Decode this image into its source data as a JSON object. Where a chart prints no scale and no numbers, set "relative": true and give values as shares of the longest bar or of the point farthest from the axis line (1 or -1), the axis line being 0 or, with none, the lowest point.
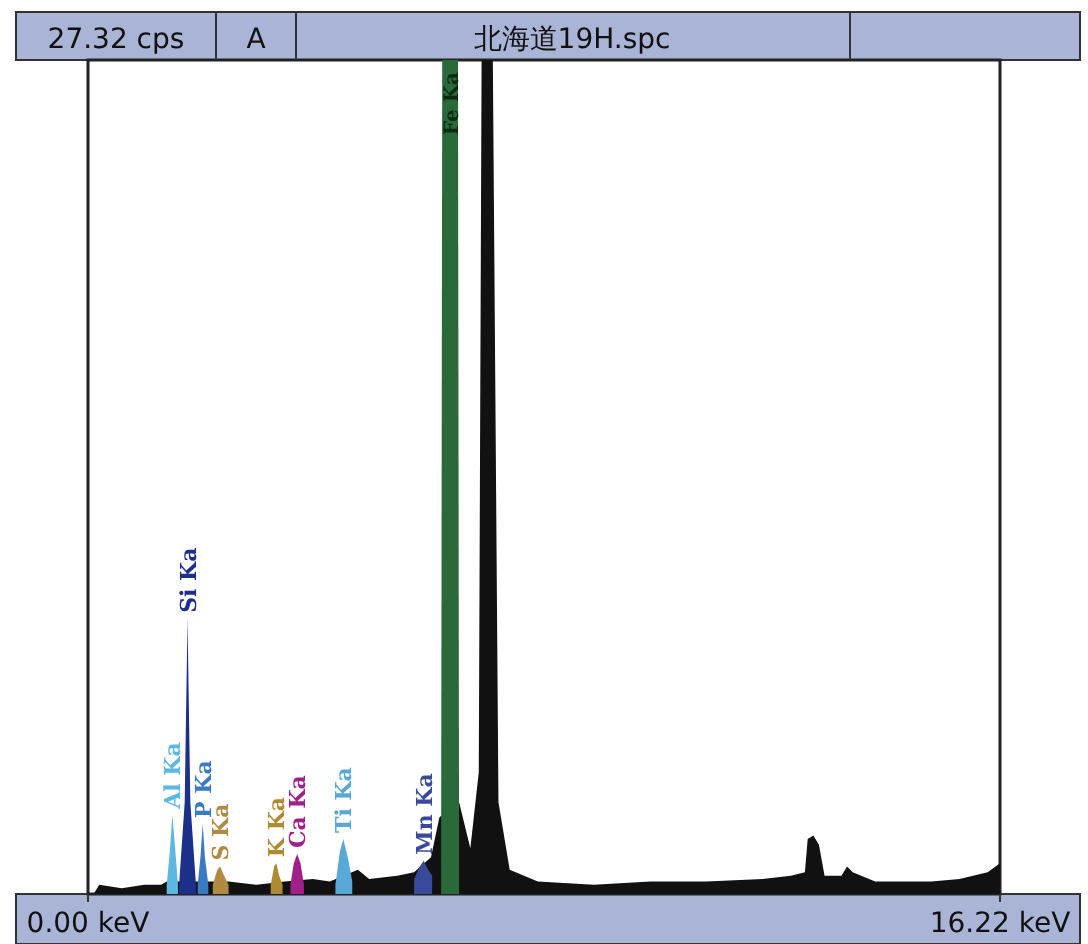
{
  "chart_data": {
    "type": "area",
    "title": "北海道19H.spc",
    "annotations": [
      "27.32 cps",
      "A"
    ],
    "xlim": [
      0,
      16.22
    ],
    "xticks": [
      {
        "value": 0,
        "label": "0.00 keV"
      },
      {
        "value": 16.22,
        "label": "16.22 keV"
      }
    ],
    "relative": true,
    "series": [
      {
        "color": "#111111",
        "x": [
          0.1,
          0.2,
          0.6,
          1.0,
          1.3,
          1.4,
          2.5,
          3.0,
          3.5,
          4.0,
          4.3,
          4.8,
          5.0,
          5.5,
          5.8,
          6.1,
          6.25,
          6.6,
          6.8,
          6.95,
          7.0,
          7.2,
          7.3,
          7.5,
          8.0,
          9.0,
          10.0,
          11.0,
          12.0,
          12.5,
          12.75,
          12.8,
          12.9,
          13.0,
          13.1,
          13.4,
          13.5,
          13.6,
          14.0,
          15.0,
          15.5,
          16.0,
          16.22
        ],
        "values": [
          0,
          0.011,
          0.007,
          0.011,
          0.011,
          0.015,
          0.015,
          0.011,
          0.015,
          0.018,
          0.015,
          0.029,
          0.018,
          0.022,
          0.026,
          0.044,
          0.092,
          0.11,
          0.055,
          0.146,
          1,
          1,
          0.11,
          0.029,
          0.015,
          0.011,
          0.015,
          0.015,
          0.018,
          0.022,
          0.026,
          0.066,
          0.07,
          0.059,
          0.022,
          0.022,
          0.033,
          0.026,
          0.015,
          0.015,
          0.018,
          0.026,
          0.037
        ]
      },
      {
        "name": "Fe Ka",
        "color": "#2a6a3a",
        "x": [
          6.28,
          6.3,
          6.58,
          6.6
        ],
        "values": [
          0.037,
          1,
          1,
          0.037
        ]
      },
      {
        "name": "Al Ka",
        "color": "#5bb8e0",
        "x": [
          1.4,
          1.46,
          1.5,
          1.55,
          1.6
        ],
        "values": [
          0.011,
          0.055,
          0.095,
          0.055,
          0.011
        ]
      },
      {
        "name": "Si Ka",
        "color": "#1c2f8a",
        "x": [
          1.62,
          1.72,
          1.77,
          1.82,
          1.92
        ],
        "values": [
          0.011,
          0.11,
          0.33,
          0.11,
          0.011
        ]
      },
      {
        "name": "P Ka",
        "color": "#3a7ac0",
        "x": [
          1.95,
          2.0,
          2.04,
          2.08,
          2.14
        ],
        "values": [
          0.011,
          0.044,
          0.084,
          0.044,
          0.011
        ]
      },
      {
        "name": "S Ka",
        "color": "#b08a40",
        "x": [
          2.22,
          2.3,
          2.35,
          2.42,
          2.5
        ],
        "values": [
          0.011,
          0.029,
          0.033,
          0.022,
          0.011
        ]
      },
      {
        "name": "K Ka",
        "color": "#b08a30",
        "x": [
          3.25,
          3.31,
          3.35,
          3.4,
          3.46
        ],
        "values": [
          0.011,
          0.033,
          0.037,
          0.022,
          0.011
        ]
      },
      {
        "name": "Ca Ka",
        "color": "#a0208a",
        "x": [
          3.6,
          3.66,
          3.72,
          3.78,
          3.84
        ],
        "values": [
          0.011,
          0.037,
          0.048,
          0.037,
          0.011
        ]
      },
      {
        "name": "Ti Ka",
        "color": "#5aa8d8",
        "x": [
          4.4,
          4.48,
          4.54,
          4.62,
          4.7
        ],
        "values": [
          0.011,
          0.051,
          0.066,
          0.044,
          0.015
        ]
      },
      {
        "name": "Mn Ka",
        "color": "#3a4a9a",
        "x": [
          5.8,
          5.9,
          5.97,
          6.05,
          6.12
        ],
        "values": [
          0.018,
          0.033,
          0.04,
          0.029,
          0.022
        ]
      }
    ]
  }
}
